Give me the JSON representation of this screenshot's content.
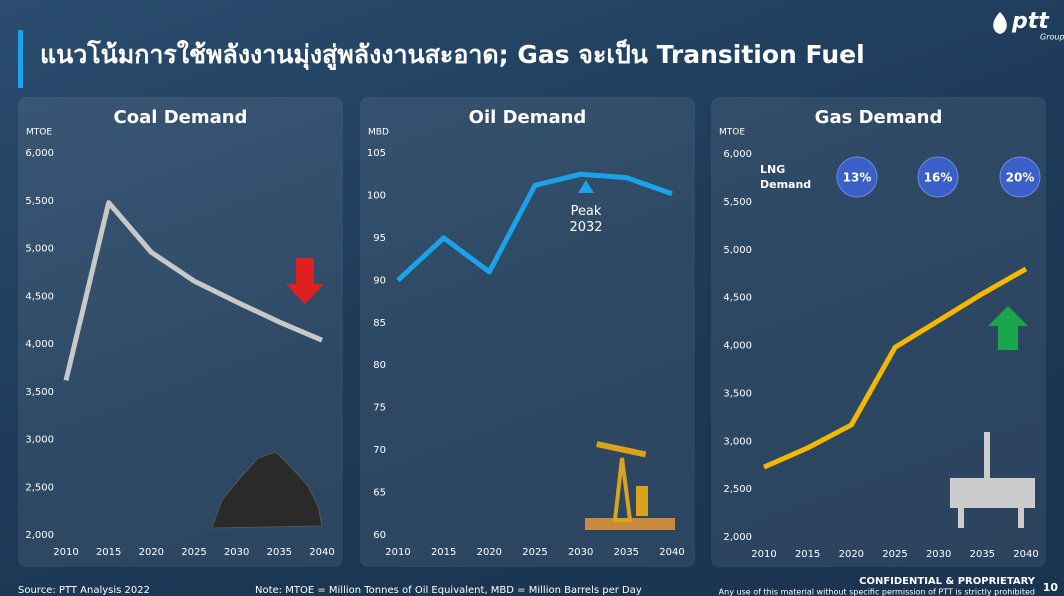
{
  "header": {
    "title": "แนวโน้มการใช้พลังงานมุ่งสู่พลังงานสะอาด; Gas จะเป็น Transition Fuel",
    "logo": "ptt",
    "logo_sub": "Group"
  },
  "chart_data": [
    {
      "type": "line",
      "title": "Coal Demand",
      "y_label": "MTOE",
      "color": "#c8c8c8",
      "x": [
        2010,
        2015,
        2020,
        2025,
        2030,
        2035,
        2040
      ],
      "values": [
        3620,
        5480,
        4960,
        4660,
        4440,
        4230,
        4040
      ],
      "xlim": [
        2010,
        2040
      ],
      "xticks": [
        2010,
        2015,
        2020,
        2025,
        2030,
        2035,
        2040
      ],
      "ylim": [
        2000,
        6000
      ],
      "yticks": [
        {
          "value": 2000,
          "label": "2,000"
        },
        {
          "value": 2500,
          "label": "2,500"
        },
        {
          "value": 3000,
          "label": "3,000"
        },
        {
          "value": 3500,
          "label": "3,500"
        },
        {
          "value": 4000,
          "label": "4,000"
        },
        {
          "value": 4500,
          "label": "4,500"
        },
        {
          "value": 5000,
          "label": "5,000"
        },
        {
          "value": 5500,
          "label": "5,500"
        },
        {
          "value": 6000,
          "label": "6,000"
        }
      ]
    },
    {
      "type": "line",
      "title": "Oil Demand",
      "y_label": "MBD",
      "color": "#1aa3e8",
      "x": [
        2010,
        2015,
        2020,
        2025,
        2030,
        2035,
        2040
      ],
      "values": [
        90.0,
        95.0,
        91.0,
        101.2,
        102.5,
        102.1,
        100.2
      ],
      "xlim": [
        2010,
        2040
      ],
      "xticks": [
        2010,
        2015,
        2020,
        2025,
        2030,
        2035,
        2040
      ],
      "ylim": [
        60,
        105
      ],
      "yticks": [
        60,
        65,
        70,
        75,
        80,
        85,
        90,
        95,
        100,
        105
      ],
      "annotation": "Peak 2032"
    },
    {
      "type": "line",
      "title": "Gas Demand",
      "y_label": "MTOE",
      "color": "#f5b800",
      "x": [
        2010,
        2015,
        2020,
        2025,
        2030,
        2035,
        2040
      ],
      "values": [
        2730,
        2930,
        3170,
        3980,
        4260,
        4540,
        4800
      ],
      "xlim": [
        2010,
        2040
      ],
      "xticks": [
        2010,
        2015,
        2020,
        2025,
        2030,
        2035,
        2040
      ],
      "ylim": [
        2000,
        6000
      ],
      "yticks": [
        {
          "value": 2000,
          "label": "2,000"
        },
        {
          "value": 2500,
          "label": "2,500"
        },
        {
          "value": 3000,
          "label": "3,000"
        },
        {
          "value": 3500,
          "label": "3,500"
        },
        {
          "value": 4000,
          "label": "4,000"
        },
        {
          "value": 4500,
          "label": "4,500"
        },
        {
          "value": 5000,
          "label": "5,000"
        },
        {
          "value": 5500,
          "label": "5,500"
        },
        {
          "value": 6000,
          "label": "6,000"
        }
      ],
      "lng": {
        "label": "LNG Demand",
        "values": [
          13,
          16,
          20
        ],
        "value_labels": [
          "13%",
          "16%",
          "20%"
        ]
      }
    }
  ],
  "footer": {
    "source": "Source: PTT Analysis 2022",
    "note": "Note: MTOE = Million Tonnes of Oil Equivalent, MBD = Million Barrels per Day",
    "confidential": "CONFIDENTIAL & PROPRIETARY",
    "disclaimer": "Any use of this material without specific permission of PTT is strictly prohibited",
    "page": "10"
  }
}
